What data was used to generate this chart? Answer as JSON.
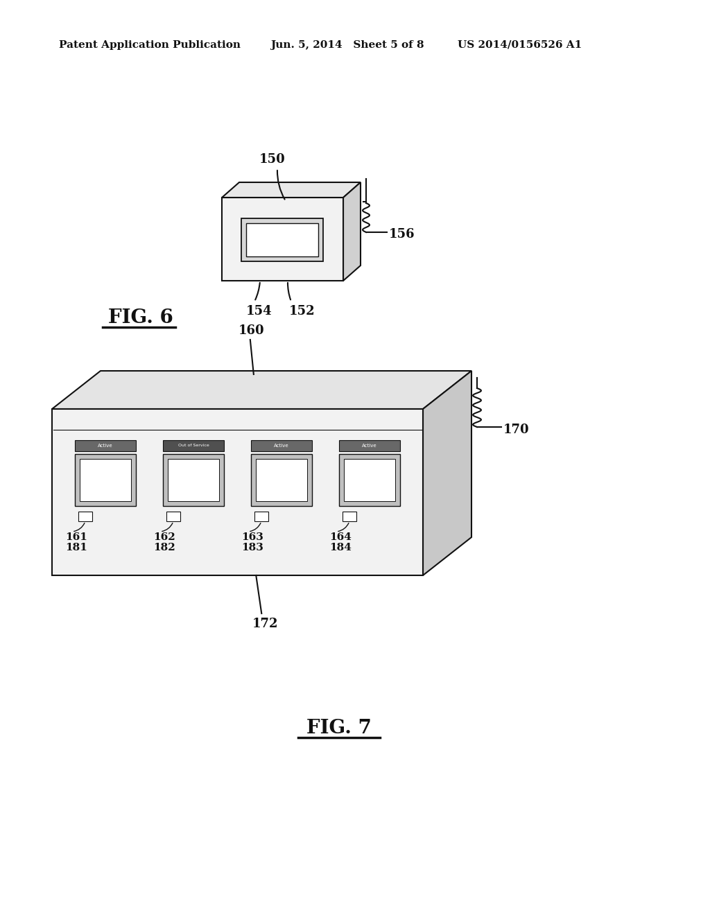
{
  "bg_color": "#ffffff",
  "header_text": "Patent Application Publication",
  "header_date": "Jun. 5, 2014   Sheet 5 of 8",
  "header_patent": "US 2014/0156526 A1",
  "fig6_label": "FIG. 6",
  "fig7_label": "FIG. 7",
  "label_150": "150",
  "label_152": "152",
  "label_154": "154",
  "label_156": "156",
  "label_160": "160",
  "label_161": "161",
  "label_162": "162",
  "label_163": "163",
  "label_164": "164",
  "label_170": "170",
  "label_172": "172",
  "label_181": "181",
  "label_182": "182",
  "label_183": "183",
  "label_184": "184",
  "atm_labels": [
    "Active",
    "Out of Service",
    "Active",
    "Active"
  ]
}
